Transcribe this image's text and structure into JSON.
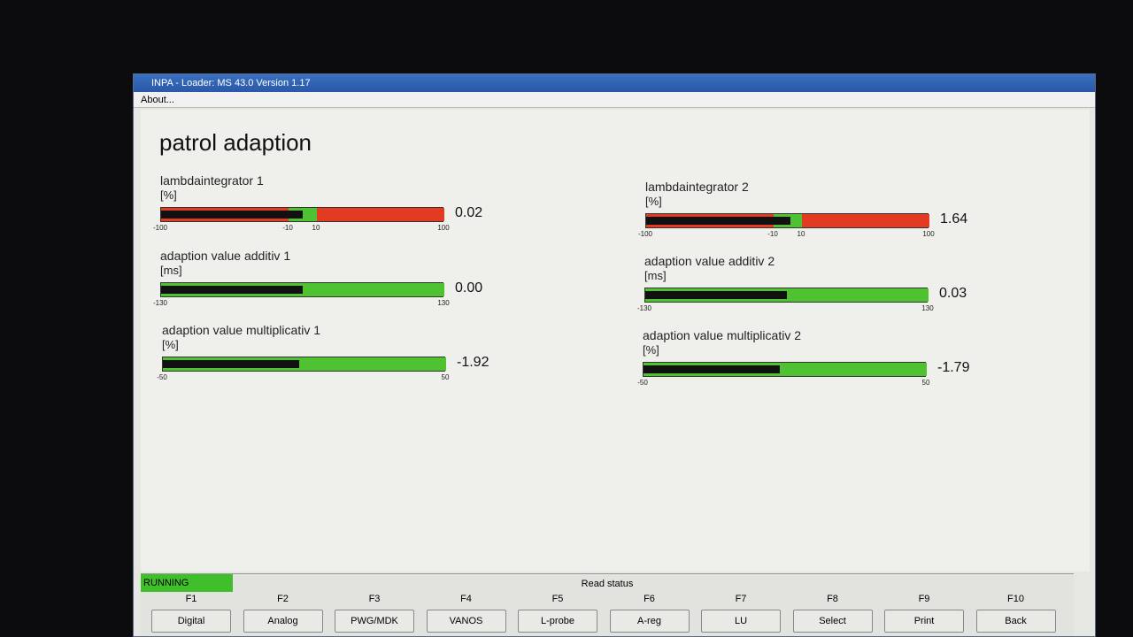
{
  "window": {
    "title": "INPA - Loader: MS 43.0 Version 1.17",
    "menu": [
      "About..."
    ]
  },
  "page": {
    "title": "patrol adaption"
  },
  "gauges": [
    {
      "label": "lambdaintegrator 1",
      "unit": "[%]",
      "value": 0.02,
      "ticks": [
        -100,
        -10,
        10,
        100
      ],
      "zone_colors": [
        "#e23b22",
        "#4fc232",
        "#e23b22"
      ]
    },
    {
      "label": "adaption value additiv 1",
      "unit": "[ms]",
      "value": {
        "value": 0,
        "label": "0.00"
      },
      "ticks": [
        -130,
        130
      ],
      "zone_colors": [
        "#4fc232"
      ]
    },
    {
      "label": "adaption value multiplicativ 1",
      "unit": "[%]",
      "value": -1.92,
      "ticks": [
        -50,
        50
      ],
      "zone_colors": [
        "#4fc232"
      ]
    },
    {
      "label": "lambdaintegrator 2",
      "unit": "[%]",
      "value": 1.64,
      "ticks": [
        -100,
        -10,
        10,
        100
      ],
      "zone_colors": [
        "#e23b22",
        "#4fc232",
        "#e23b22"
      ]
    },
    {
      "label": "adaption value additiv 2",
      "unit": "[ms]",
      "value": 0.03,
      "ticks": [
        -130,
        130
      ],
      "zone_colors": [
        "#4fc232"
      ]
    },
    {
      "label": "adaption value multiplicativ 2",
      "unit": "[%]",
      "value": -1.79,
      "ticks": [
        -50,
        50
      ],
      "zone_colors": [
        "#4fc232"
      ]
    }
  ],
  "status": {
    "state": "RUNNING",
    "caption": "Read status"
  },
  "function_keys": [
    {
      "key": "F1",
      "label": "Digital"
    },
    {
      "key": "F2",
      "label": "Analog"
    },
    {
      "key": "F3",
      "label": "PWG/MDK"
    },
    {
      "key": "F4",
      "label": "VANOS"
    },
    {
      "key": "F5",
      "label": "L-probe"
    },
    {
      "key": "F6",
      "label": "A-reg"
    },
    {
      "key": "F7",
      "label": "LU"
    },
    {
      "key": "F8",
      "label": "Select"
    },
    {
      "key": "F9",
      "label": "Print"
    },
    {
      "key": "F10",
      "label": "Back"
    }
  ]
}
